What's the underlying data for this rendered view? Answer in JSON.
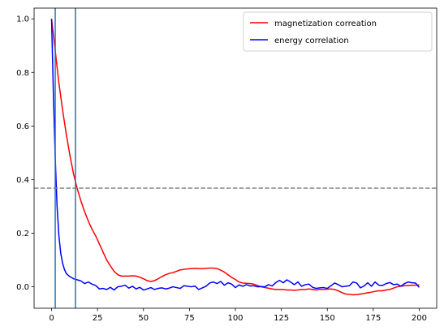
{
  "chart_data": {
    "type": "line",
    "title": "",
    "xlabel": "",
    "ylabel": "",
    "xlim": [
      -9.5,
      209.5
    ],
    "ylim": [
      -0.08,
      1.04
    ],
    "xticks": [
      0,
      25,
      50,
      75,
      100,
      125,
      150,
      175,
      200
    ],
    "yticks": [
      0.0,
      0.2,
      0.4,
      0.6,
      0.8,
      1.0
    ],
    "xtick_labels": [
      "0",
      "25",
      "50",
      "75",
      "100",
      "125",
      "150",
      "175",
      "200"
    ],
    "ytick_labels": [
      "0.0",
      "0.2",
      "0.4",
      "0.6",
      "0.8",
      "1.0"
    ],
    "grid": false,
    "legend": "top-right",
    "series": [
      {
        "name": "magnetization correation",
        "color": "#ff0000",
        "x": [
          0,
          2,
          4,
          6,
          8,
          10,
          12,
          14,
          16,
          18,
          20,
          22,
          24,
          26,
          28,
          30,
          32,
          34,
          36,
          38,
          40,
          42,
          44,
          46,
          48,
          50,
          52,
          54,
          56,
          58,
          60,
          62,
          64,
          66,
          68,
          70,
          72,
          74,
          76,
          78,
          80,
          82,
          84,
          86,
          88,
          90,
          92,
          94,
          96,
          98,
          100,
          102,
          104,
          106,
          108,
          110,
          112,
          114,
          116,
          118,
          120,
          122,
          124,
          126,
          128,
          130,
          132,
          134,
          136,
          138,
          140,
          142,
          144,
          146,
          148,
          150,
          152,
          154,
          156,
          158,
          160,
          162,
          164,
          166,
          168,
          170,
          172,
          174,
          176,
          178,
          180,
          182,
          184,
          186,
          188,
          190,
          192,
          194,
          196,
          198,
          200
        ],
        "values": [
          1.0,
          0.88,
          0.76,
          0.66,
          0.57,
          0.49,
          0.42,
          0.365,
          0.32,
          0.28,
          0.245,
          0.215,
          0.19,
          0.16,
          0.13,
          0.1,
          0.078,
          0.058,
          0.045,
          0.04,
          0.04,
          0.04,
          0.041,
          0.04,
          0.036,
          0.03,
          0.023,
          0.02,
          0.023,
          0.03,
          0.038,
          0.045,
          0.05,
          0.053,
          0.058,
          0.063,
          0.065,
          0.067,
          0.068,
          0.069,
          0.068,
          0.068,
          0.069,
          0.07,
          0.07,
          0.068,
          0.062,
          0.055,
          0.045,
          0.035,
          0.027,
          0.018,
          0.014,
          0.013,
          0.012,
          0.01,
          0.005,
          0.0,
          -0.003,
          -0.005,
          -0.008,
          -0.01,
          -0.01,
          -0.01,
          -0.012,
          -0.012,
          -0.013,
          -0.012,
          -0.01,
          -0.01,
          -0.008,
          -0.01,
          -0.012,
          -0.01,
          -0.01,
          -0.009,
          -0.008,
          -0.01,
          -0.015,
          -0.022,
          -0.027,
          -0.028,
          -0.03,
          -0.029,
          -0.027,
          -0.025,
          -0.022,
          -0.02,
          -0.017,
          -0.015,
          -0.015,
          -0.012,
          -0.01,
          -0.005,
          0.0,
          0.002,
          0.004,
          0.005,
          0.006,
          0.006,
          0.007
        ]
      },
      {
        "name": "energy correlation",
        "color": "#0000ff",
        "x": [
          0,
          1,
          2,
          3,
          4,
          5,
          6,
          7,
          8,
          9,
          10,
          11,
          12,
          13,
          14,
          15,
          16,
          18,
          20,
          22,
          24,
          26,
          28,
          30,
          32,
          34,
          36,
          38,
          40,
          42,
          44,
          46,
          48,
          50,
          52,
          54,
          56,
          58,
          60,
          62,
          64,
          66,
          68,
          70,
          72,
          74,
          76,
          78,
          80,
          82,
          84,
          86,
          88,
          90,
          92,
          94,
          96,
          98,
          100,
          102,
          104,
          106,
          108,
          110,
          112,
          114,
          116,
          118,
          120,
          122,
          124,
          126,
          128,
          130,
          132,
          134,
          136,
          138,
          140,
          142,
          144,
          146,
          148,
          150,
          152,
          154,
          156,
          158,
          160,
          162,
          164,
          166,
          168,
          170,
          172,
          174,
          176,
          178,
          180,
          182,
          184,
          186,
          188,
          190,
          192,
          194,
          196,
          198,
          200
        ],
        "values": [
          1.0,
          0.72,
          0.48,
          0.3,
          0.19,
          0.125,
          0.088,
          0.065,
          0.05,
          0.043,
          0.038,
          0.034,
          0.03,
          0.028,
          0.026,
          0.024,
          0.022,
          0.012,
          0.018,
          0.01,
          0.005,
          -0.008,
          -0.006,
          -0.01,
          -0.002,
          -0.012,
          0.0,
          0.002,
          0.006,
          -0.005,
          0.002,
          -0.008,
          -0.002,
          -0.012,
          -0.008,
          -0.003,
          -0.01,
          -0.006,
          -0.004,
          -0.008,
          -0.005,
          0.0,
          -0.003,
          -0.006,
          0.004,
          0.002,
          0.0,
          0.003,
          -0.01,
          -0.004,
          0.002,
          0.014,
          0.018,
          0.012,
          0.02,
          0.006,
          0.015,
          0.01,
          -0.003,
          0.007,
          0.002,
          0.008,
          0.003,
          0.004,
          0.0,
          0.001,
          0.0,
          0.008,
          0.003,
          0.016,
          0.024,
          0.015,
          0.026,
          0.018,
          0.008,
          0.018,
          0.002,
          0.008,
          0.01,
          -0.002,
          -0.006,
          -0.004,
          -0.003,
          -0.006,
          0.004,
          0.014,
          0.008,
          0.0,
          0.002,
          0.004,
          0.018,
          0.014,
          -0.004,
          0.003,
          0.015,
          0.002,
          0.018,
          0.006,
          0.005,
          0.012,
          0.016,
          0.008,
          0.01,
          0.002,
          0.012,
          0.018,
          0.015,
          0.014,
          -0.002
        ]
      }
    ],
    "hlines": [
      {
        "y": 0.3679,
        "color": "#808080",
        "style": "dashed"
      }
    ],
    "vlines": [
      {
        "x": 2,
        "color": "#1f77b4"
      },
      {
        "x": 13,
        "color": "#1f77b4"
      }
    ]
  }
}
